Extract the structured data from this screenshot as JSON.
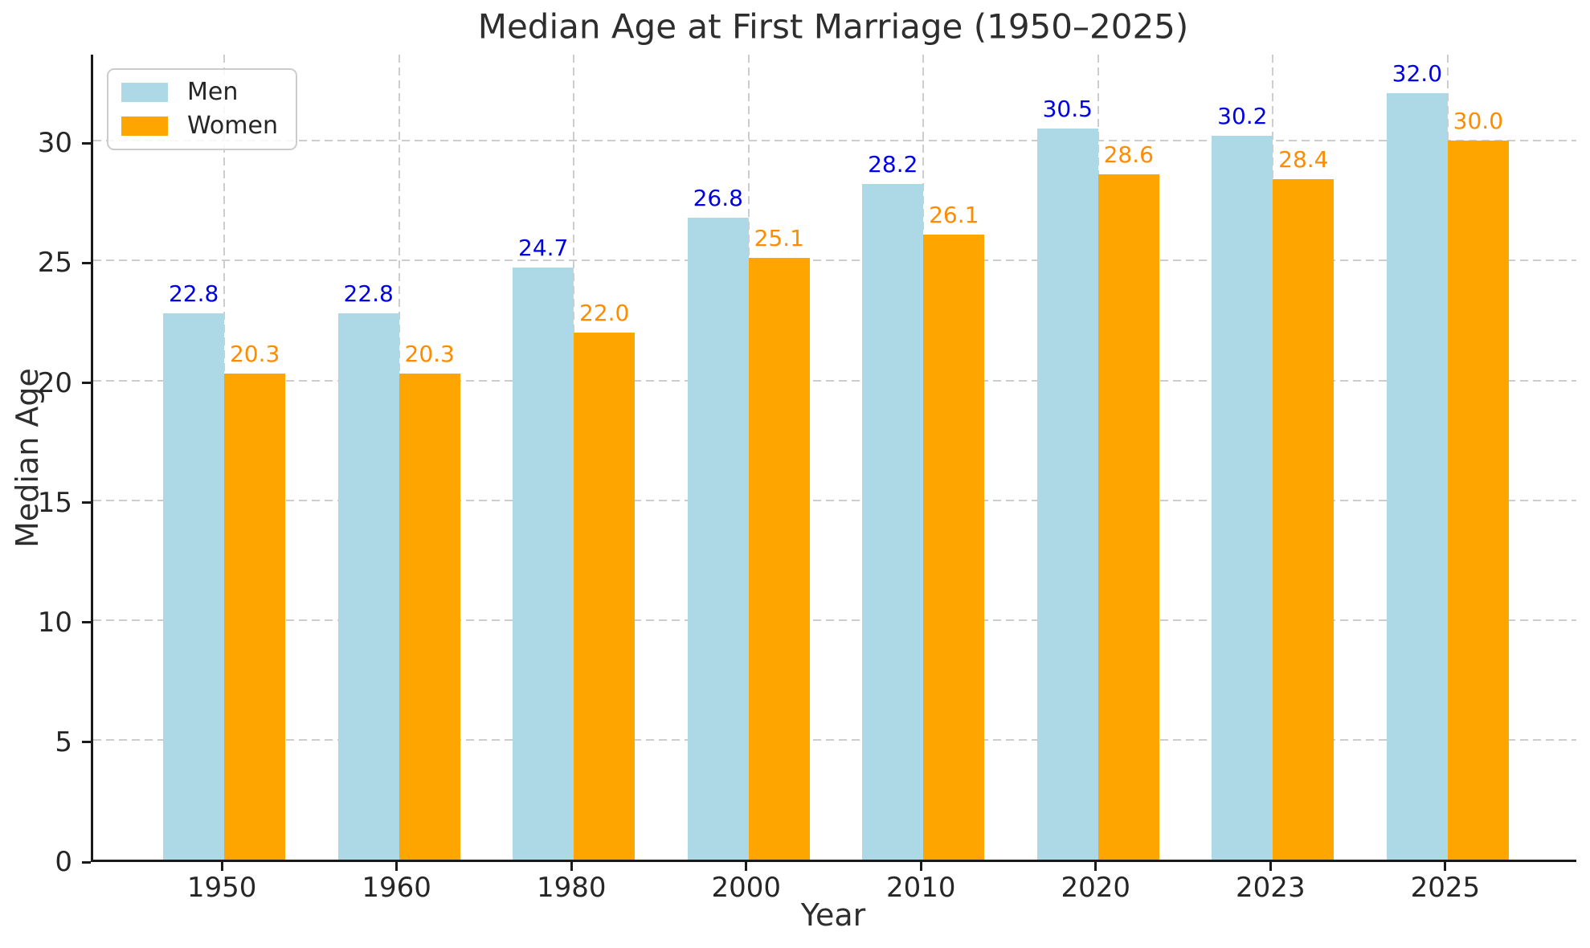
{
  "chart_data": {
    "type": "bar",
    "title": "Median Age at First Marriage (1950–2025)",
    "xlabel": "Year",
    "ylabel": "Median Age",
    "categories": [
      "1950",
      "1960",
      "1980",
      "2000",
      "2010",
      "2020",
      "2023",
      "2025"
    ],
    "series": [
      {
        "name": "Men",
        "color": "#ADD8E6",
        "label_color": "#0000E6",
        "values": [
          22.8,
          22.8,
          24.7,
          26.8,
          28.2,
          30.5,
          30.2,
          32.0
        ]
      },
      {
        "name": "Women",
        "color": "#FFA500",
        "label_color": "#FF8C00",
        "values": [
          20.3,
          20.3,
          22.0,
          25.1,
          26.1,
          28.6,
          28.4,
          30.0
        ]
      }
    ],
    "yticks": [
      0,
      5,
      10,
      15,
      20,
      25,
      30
    ],
    "ylim": [
      0,
      33.7
    ],
    "grid": "dashed, horizontal at yticks and vertical at category centers",
    "legend_position": "upper-left",
    "value_label_format": "one decimal"
  }
}
